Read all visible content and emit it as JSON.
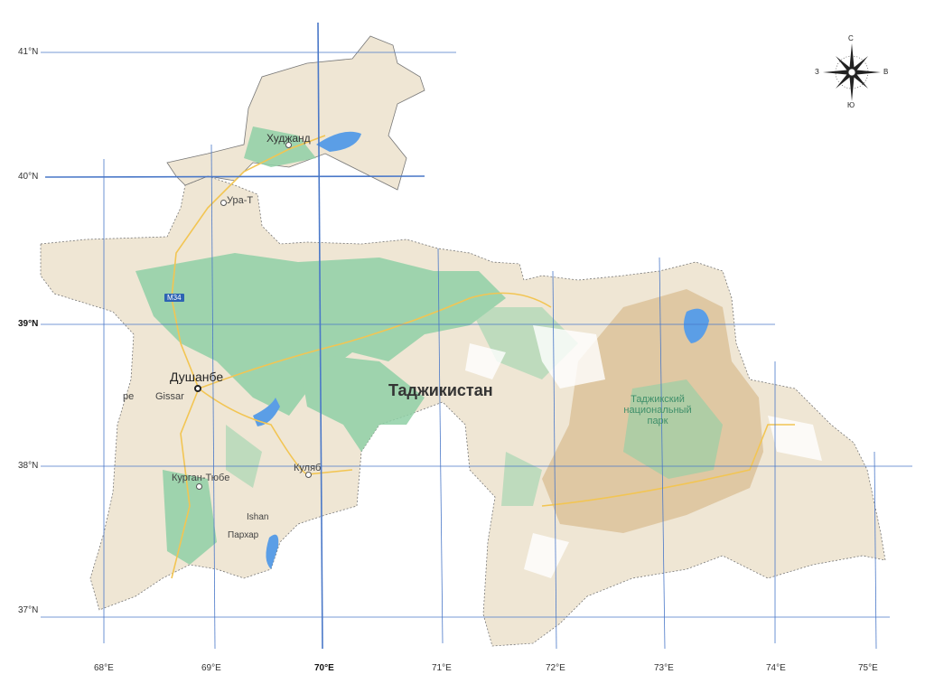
{
  "map": {
    "country_label": "Таджикистан",
    "capital": "Душанбе",
    "places": {
      "khujand": "Худжанд",
      "ura_tube": "Ура-Т",
      "gissar": "Gissar",
      "tursunzade_partial": "ре",
      "kurgan_tube": "Курган-Тюбе",
      "kulyab": "Куляб",
      "ishan": "Ishan",
      "parkhar": "Пархар"
    },
    "park_label_lines": [
      "Таджикский",
      "национальный",
      "парк"
    ],
    "road_shield": "M34",
    "latitude_labels": [
      "41°N",
      "40°N",
      "39°N",
      "38°N",
      "37°N"
    ],
    "longitude_labels": [
      "68°E",
      "69°E",
      "70°E",
      "71°E",
      "72°E",
      "73°E",
      "74°E",
      "75°E"
    ],
    "emphasized_grid": [
      "39°N",
      "70°E"
    ],
    "compass": {
      "north": "С",
      "south": "Ю",
      "west": "З",
      "east": "В"
    },
    "colors": {
      "land": "#efe6d4",
      "forest": "#8fd0a6",
      "water": "#5b9ee6",
      "grid": "#4a78c8",
      "mountain_park": "#dcc29a"
    }
  }
}
